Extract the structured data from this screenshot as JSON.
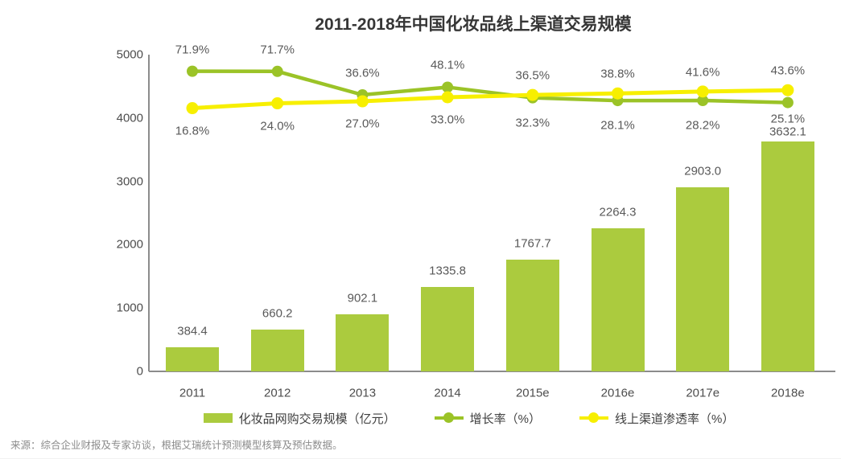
{
  "title": "2011-2018年中国化妆品线上渠道交易规模",
  "source_note": "来源：综合企业财报及专家访谈，根据艾瑞统计预测模型核算及预估数据。",
  "colors": {
    "bar": "#abcb3e",
    "growth_line": "#9bc327",
    "penetration_line": "#f7ef00",
    "axis_line": "#8c8c8c",
    "value_label": "#595959",
    "tick_label": "#4d4d4d",
    "title": "#363636",
    "source": "#8c8c8c"
  },
  "legend": [
    {
      "label": "化妆品网购交易规模（亿元）",
      "marker": "bar",
      "color": "#abcb3e"
    },
    {
      "label": "增长率（%）",
      "marker": "line",
      "color": "#9bc327"
    },
    {
      "label": "线上渠道渗透率（%）",
      "marker": "line",
      "color": "#f7ef00"
    }
  ],
  "chart_data": {
    "type": "bar+line",
    "title": "2011-2018年中国化妆品线上渠道交易规模",
    "categories": [
      "2011",
      "2012",
      "2013",
      "2014",
      "2015e",
      "2016e",
      "2017e",
      "2018e"
    ],
    "bar_series": {
      "name": "化妆品网购交易规模（亿元）",
      "unit": "亿元",
      "values": [
        384.4,
        660.2,
        902.1,
        1335.8,
        1767.7,
        2264.3,
        2903.0,
        3632.1
      ],
      "labels": [
        "384.4",
        "660.2",
        "902.1",
        "1335.8",
        "1767.7",
        "2264.3",
        "2903.0",
        "3632.1"
      ]
    },
    "line_series": [
      {
        "name": "增长率（%）",
        "values": [
          71.9,
          71.7,
          36.6,
          48.1,
          32.3,
          28.1,
          28.2,
          25.1
        ],
        "labels": [
          "71.9%",
          "71.7%",
          "36.6%",
          "48.1%",
          "32.3%",
          "28.1%",
          "28.2%",
          "25.1%"
        ],
        "label_side": [
          "above",
          "above",
          "above",
          "above",
          "below",
          "below",
          "below",
          "below"
        ]
      },
      {
        "name": "线上渠道渗透率（%）",
        "values": [
          16.8,
          24.0,
          27.0,
          33.0,
          36.5,
          38.8,
          41.6,
          43.6
        ],
        "labels": [
          "16.8%",
          "24.0%",
          "27.0%",
          "33.0%",
          "36.5%",
          "38.8%",
          "41.6%",
          "43.6%"
        ],
        "label_side": [
          "below",
          "below",
          "below",
          "below",
          "above",
          "above",
          "above",
          "above"
        ]
      }
    ],
    "y_axis": {
      "ticks": [
        "0",
        "1000",
        "2000",
        "3000",
        "4000",
        "5000"
      ],
      "min": 0,
      "max": 5000,
      "grid": false
    },
    "secondary_axis_hidden": true,
    "legend_position": "bottom"
  }
}
